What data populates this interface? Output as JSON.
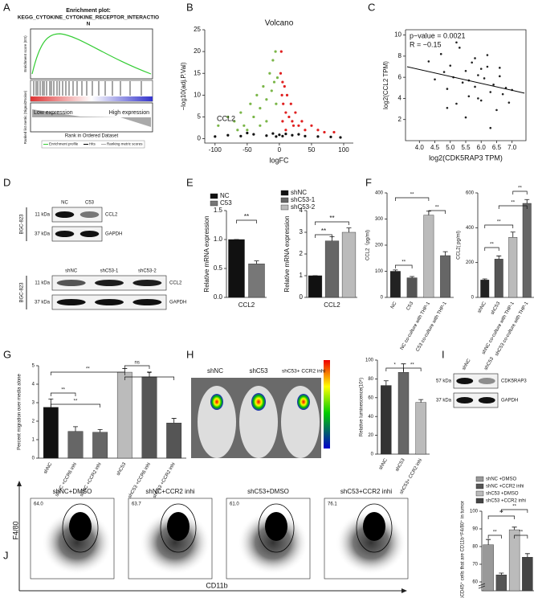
{
  "panel_labels": [
    "A",
    "B",
    "C",
    "D",
    "E",
    "F",
    "G",
    "H",
    "I",
    "J"
  ],
  "gsea": {
    "title": "Enrichment plot:",
    "subtitle": "KEGG_CYTOKINE_CYTOKINE_RECEPTOR_INTERACTIO",
    "subtitle_end": "N",
    "ylabel_top": "Enrichment score (ES)",
    "ylabel_bottom": "Ranked list metric (Signal2Noise)",
    "xlabel": "Rank in Ordered Dataset",
    "low": "Low expression",
    "high": "High expression",
    "legend": [
      "Enrichment profile",
      "Hits",
      "Ranking metric scores"
    ]
  },
  "blot_d": {
    "top": {
      "cell_line": "BGC-823",
      "lanes": [
        "NC",
        "C53"
      ],
      "markers": [
        "11 kDa",
        "37 kDa"
      ],
      "proteins": [
        "CCL2",
        "GAPDH"
      ]
    },
    "bottom": {
      "cell_line": "BGC-823",
      "lanes": [
        "shNC",
        "shC53-1",
        "shC53-2"
      ],
      "markers": [
        "11 kDa",
        "37 kDa"
      ],
      "proteins": [
        "CCL2",
        "GAPDH"
      ]
    }
  },
  "blot_i": {
    "lanes": [
      "shNC",
      "shC53"
    ],
    "markers": [
      "57 kDa",
      "37 kDa"
    ],
    "proteins": [
      "CDK5RAP3",
      "GAPDH"
    ]
  },
  "imaging": {
    "labels": [
      "shNC",
      "shC53",
      "shC53+ CCR2 inhi"
    ]
  },
  "flow": {
    "titles": [
      "shNC+DMSO",
      "shNC+CCR2 inhi",
      "shC53+DMSO",
      "shC53+CCR2 inhi"
    ],
    "gate_values": [
      "64.0",
      "63.7",
      "61.0",
      "76.1"
    ],
    "yaxis": "F4/80",
    "xaxis": "CD11b"
  },
  "chart_data": [
    {
      "type": "scatter",
      "title": "Volcano",
      "xlabel": "logFC",
      "ylabel": "−log10(adj.P.Val)",
      "annotations": [
        "CCL2"
      ],
      "xlim": [
        -116,
        115
      ],
      "ylim": [
        -1,
        25
      ],
      "xticks": [
        -100,
        -50,
        0,
        50,
        100
      ],
      "yticks": [
        0,
        5,
        10,
        15,
        20,
        25
      ],
      "series": [
        {
          "color": "#7ab648",
          "x": [
            -95,
            -80,
            -70,
            -60,
            -55,
            -45,
            -40,
            -35,
            -30,
            -25,
            -20,
            -15,
            -12,
            -10,
            -8,
            -6,
            -5,
            -3,
            -20,
            -30,
            -50,
            -65
          ],
          "y": [
            3,
            5,
            4,
            6,
            3,
            8,
            5,
            10,
            7,
            12,
            9,
            15,
            11,
            18,
            13,
            20,
            8,
            14,
            4,
            3,
            2,
            2
          ]
        },
        {
          "color": "#e02020",
          "x": [
            2,
            3,
            4,
            5,
            6,
            8,
            10,
            12,
            15,
            18,
            20,
            25,
            30,
            35,
            40,
            50,
            60,
            70,
            85,
            5,
            10,
            22
          ],
          "y": [
            15,
            20,
            10,
            13,
            8,
            12,
            6,
            10,
            5,
            8,
            4,
            6,
            3,
            4,
            2,
            3,
            2,
            1.5,
            1.5,
            4,
            2,
            3
          ]
        },
        {
          "color": "#111111",
          "x": [
            -100,
            -80,
            -60,
            -40,
            -20,
            -10,
            0,
            10,
            20,
            40,
            60,
            80,
            95,
            -50,
            -5,
            5,
            30
          ],
          "y": [
            0.5,
            0.8,
            0.6,
            1,
            0.7,
            1.2,
            0.9,
            1.1,
            0.8,
            0.6,
            0.5,
            0.4,
            0.3,
            1.3,
            0.5,
            0.6,
            1
          ]
        }
      ]
    },
    {
      "type": "scatter",
      "xlabel": "log2(CDK5RAP3 TPM)",
      "ylabel": "log2(CCL2 TPM)",
      "annotations": [
        "p−value = 0.0021",
        "R = −0.15"
      ],
      "xlim": [
        3.55,
        7.45
      ],
      "ylim": [
        0,
        10.5
      ],
      "xticks": [
        {
          "value": 4,
          "label": "4.0"
        },
        {
          "value": 4.5,
          "label": "4.5"
        },
        {
          "value": 5,
          "label": "5.0"
        },
        {
          "value": 5.5,
          "label": "5.5"
        },
        {
          "value": 6,
          "label": "6.0"
        },
        {
          "value": 6.5,
          "label": "6.5"
        },
        {
          "value": 7,
          "label": "7.0"
        }
      ],
      "yticks": [
        2,
        4,
        6,
        8,
        10
      ],
      "series": [
        {
          "color": "#222222",
          "x": [
            4.3,
            4.5,
            4.7,
            4.8,
            4.9,
            5.0,
            5.1,
            5.2,
            5.3,
            5.4,
            5.5,
            5.6,
            5.7,
            5.8,
            5.9,
            6.0,
            6.1,
            6.2,
            6.3,
            6.4,
            6.5,
            6.6,
            6.7,
            6.8,
            6.9,
            7.0,
            5.2,
            5.5,
            5.8,
            6.0,
            6.3,
            5.6,
            5.9,
            6.2,
            4.9,
            6.6
          ],
          "y": [
            7.5,
            5.8,
            8.2,
            6.5,
            4.9,
            7.1,
            6.0,
            3.5,
            8.8,
            5.5,
            6.6,
            4.2,
            7.4,
            5.1,
            6.2,
            3.8,
            5.9,
            7.0,
            4.6,
            5.3,
            2.9,
            6.1,
            4.4,
            5.0,
            3.6,
            4.8,
            9.3,
            2.2,
            7.8,
            6.8,
            1.2,
            5.7,
            4.0,
            8.1,
            3.1,
            6.9
          ]
        }
      ],
      "fit": {
        "x": [
          3.6,
          7.4
        ],
        "y": [
          7.0,
          4.5
        ]
      }
    },
    {
      "type": "bar",
      "ylabel": "Relative mRNA expression",
      "categories": [
        "CCL2"
      ],
      "series": [
        {
          "name": "NC",
          "color": "#111111",
          "values": [
            1.0
          ],
          "errors": [
            0
          ]
        },
        {
          "name": "C53",
          "color": "#777777",
          "values": [
            0.58
          ],
          "errors": [
            0.05
          ]
        }
      ],
      "ylim": [
        0,
        1.5
      ],
      "yticks": [
        {
          "value": 0,
          "label": "0.0"
        },
        {
          "value": 0.5,
          "label": "0.5"
        },
        {
          "value": 1,
          "label": "1.0"
        },
        {
          "value": 1.5,
          "label": "1.5"
        }
      ],
      "significance": [
        "**"
      ]
    },
    {
      "type": "bar",
      "ylabel": "Relative mRNA expression",
      "categories": [
        "CCL2"
      ],
      "series": [
        {
          "name": "shNC",
          "color": "#111111",
          "values": [
            1.0
          ],
          "errors": [
            0
          ]
        },
        {
          "name": "shC53-1",
          "color": "#666666",
          "values": [
            2.6
          ],
          "errors": [
            0.2
          ]
        },
        {
          "name": "shC53-2",
          "color": "#bbbbbb",
          "values": [
            3.0
          ],
          "errors": [
            0.2
          ]
        }
      ],
      "ylim": [
        0,
        4
      ],
      "yticks": [
        0,
        1,
        2,
        3,
        4
      ],
      "significance": [
        "**",
        "**"
      ]
    },
    {
      "type": "bar",
      "ylabel": "CCL2（pg/ml)",
      "categories": [
        "NC",
        "C53",
        "NC co-culture with THP-1",
        "C53 co-culture with THP-1"
      ],
      "series": [
        {
          "colors": [
            "#222222",
            "#555555",
            "#bbbbbb",
            "#666666"
          ],
          "values": [
            100,
            75,
            315,
            160
          ],
          "errors": [
            5,
            5,
            15,
            15
          ]
        }
      ],
      "ylim": [
        0,
        400
      ],
      "yticks": [
        0,
        100,
        200,
        300,
        400
      ],
      "significance": [
        "**",
        "**",
        "**"
      ]
    },
    {
      "type": "bar",
      "ylabel": "CCL2( pg/ml)",
      "categories": [
        "shNC",
        "shC53",
        "shNC co-culture with THP-1",
        "shC53 co-culture with THP-1"
      ],
      "series": [
        {
          "colors": [
            "#222222",
            "#555555",
            "#bbbbbb",
            "#666666"
          ],
          "values": [
            100,
            220,
            345,
            540
          ],
          "errors": [
            6,
            18,
            30,
            22
          ]
        }
      ],
      "ylim": [
        0,
        600
      ],
      "yticks": [
        0,
        200,
        400,
        600
      ],
      "significance": [
        "**",
        "**",
        "**",
        "**"
      ]
    },
    {
      "type": "bar",
      "ylabel": "Percent migration over media alone",
      "categories": [
        "shNC",
        "shNC +CCR6 inhi",
        "shNC +CCR2 inhi",
        "shC53",
        "shC53 +CCR6 inhi",
        "shC53 +CCR2 inhi"
      ],
      "series": [
        {
          "colors": [
            "#111111",
            "#666666",
            "#666666",
            "#bbbbbb",
            "#555555",
            "#555555"
          ],
          "values": [
            2.75,
            1.45,
            1.4,
            4.65,
            4.4,
            1.9
          ],
          "errors": [
            0.45,
            0.25,
            0.15,
            0.2,
            0.25,
            0.25
          ]
        }
      ],
      "ylim": [
        0,
        5
      ],
      "yticks": [
        0,
        1,
        2,
        3,
        4,
        5
      ],
      "significance": [
        "**",
        "**",
        "**",
        "ns",
        "**"
      ]
    },
    {
      "type": "bar",
      "ylabel": "Relative luminescence(10⁶)",
      "categories": [
        "shNC",
        "shC53",
        "shC53+ CCR2 inhi"
      ],
      "series": [
        {
          "colors": [
            "#333333",
            "#666666",
            "#bbbbbb"
          ],
          "values": [
            73,
            87,
            55
          ],
          "errors": [
            5,
            9,
            3
          ]
        }
      ],
      "ylim": [
        0,
        100
      ],
      "yticks": [
        0,
        20,
        40,
        60,
        80,
        100
      ],
      "significance": [
        "*",
        "**"
      ]
    },
    {
      "type": "bar",
      "ylabel": "%CD45⁺ cells that are CD11b⁺F4/80⁺ in tumor",
      "categories": [
        null
      ],
      "series": [
        {
          "name": "shNC +DMSO",
          "color": "#999999",
          "values": [
            81
          ],
          "errors": [
            3
          ]
        },
        {
          "name": "shNC +CCR2 inhi",
          "color": "#555555",
          "values": [
            64
          ],
          "errors": [
            1
          ]
        },
        {
          "name": "shC53 +DMSO",
          "color": "#bbbbbb",
          "values": [
            89.5
          ],
          "errors": [
            1.5
          ]
        },
        {
          "name": "shC53 +CCR2 inhi",
          "color": "#444444",
          "values": [
            74
          ],
          "errors": [
            2
          ]
        }
      ],
      "ylim": [
        55,
        100
      ],
      "yticks": [
        60,
        70,
        80,
        90,
        100
      ],
      "significance": [
        "**",
        "**",
        "**",
        "**"
      ]
    }
  ]
}
